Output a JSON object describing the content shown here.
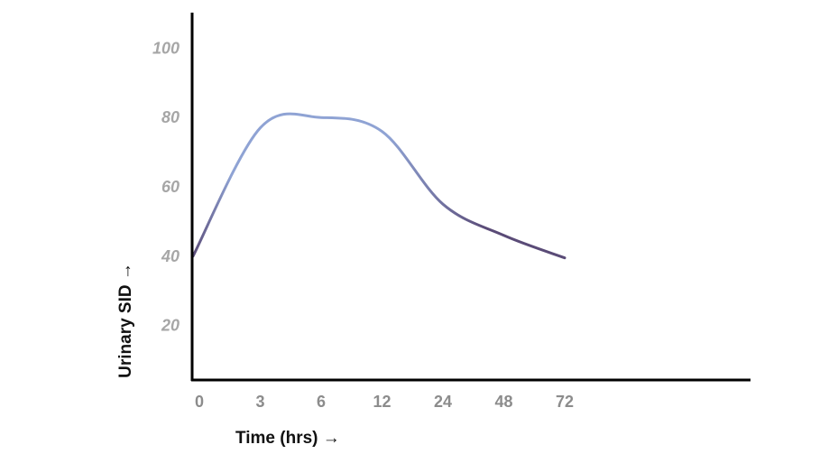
{
  "chart_data": {
    "type": "line",
    "title": "",
    "xlabel": "Time (hrs) →",
    "ylabel": "Urinary SID →",
    "x_ticks": [
      "0",
      "3",
      "6",
      "12",
      "24",
      "48",
      "72"
    ],
    "y_ticks": [
      20,
      40,
      60,
      80,
      100
    ],
    "ylim": [
      0,
      110
    ],
    "grid": false,
    "legend": "none",
    "series": [
      {
        "points": [
          {
            "x": "0",
            "y": 40
          },
          {
            "x": "3",
            "y": 77
          },
          {
            "x": "6",
            "y": 80
          },
          {
            "x": "12",
            "y": 76
          },
          {
            "x": "24",
            "y": 55
          },
          {
            "x": "48",
            "y": 46
          },
          {
            "x": "72",
            "y": 39.5
          }
        ]
      }
    ],
    "colors": {
      "line_start": "#8fa3d4",
      "line_end": "#5a4b77",
      "axis": "#000000",
      "y_tick_text": "#a6a6a6",
      "x_tick_text": "#8c8c8c"
    }
  }
}
